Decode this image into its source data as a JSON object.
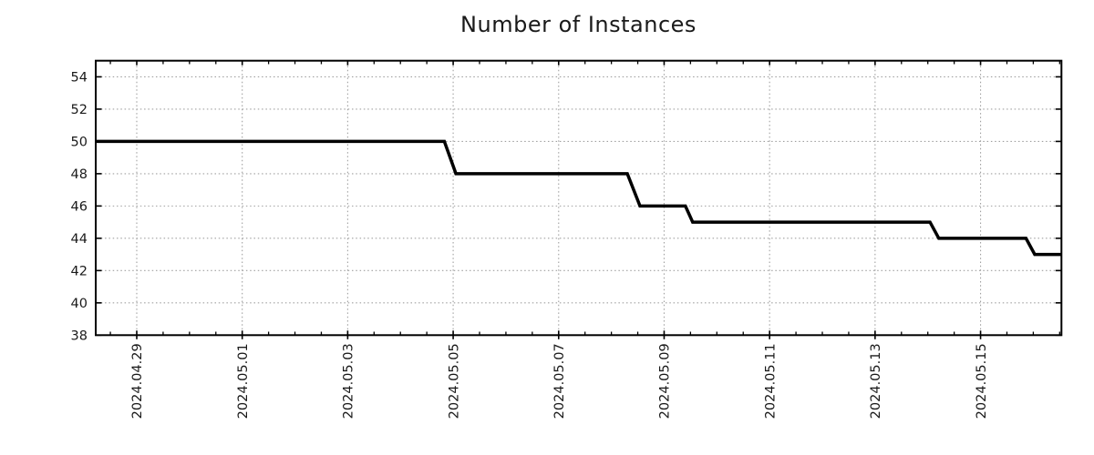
{
  "chart_data": {
    "type": "line",
    "title": "Number of Instances",
    "xlabel": "",
    "ylabel": "",
    "legend": "none",
    "grid": "dotted",
    "background": "#ffffff",
    "y_ticks": [
      38,
      40,
      42,
      44,
      46,
      48,
      50,
      52,
      54
    ],
    "ylim": [
      38,
      55
    ],
    "x_tick_labels": [
      "2024.04.29",
      "2024.05.01",
      "2024.05.03",
      "2024.05.05",
      "2024.05.07",
      "2024.05.09",
      "2024.05.11",
      "2024.05.13",
      "2024.05.15"
    ],
    "x_tick_dates": [
      "2024-04-29",
      "2024-05-01",
      "2024-05-03",
      "2024-05-05",
      "2024-05-07",
      "2024-05-09",
      "2024-05-11",
      "2024-05-13",
      "2024-05-15"
    ],
    "x_minor_tick_interval_hours": 12,
    "xlim": [
      "2024-04-28 05:20",
      "2024-05-16 12:49"
    ],
    "series": [
      {
        "name": "Number of Instances",
        "color": "#000000",
        "line_width": 3.5,
        "points": [
          [
            "2024-04-28 05:20",
            50
          ],
          [
            "2024-05-04 20:00",
            50
          ],
          [
            "2024-05-05 01:15",
            48
          ],
          [
            "2024-05-08 07:15",
            48
          ],
          [
            "2024-05-08 13:00",
            46
          ],
          [
            "2024-05-09 09:40",
            46
          ],
          [
            "2024-05-09 13:00",
            45
          ],
          [
            "2024-05-14 01:00",
            45
          ],
          [
            "2024-05-14 05:00",
            44
          ],
          [
            "2024-05-15 20:40",
            44
          ],
          [
            "2024-05-16 00:40",
            43
          ],
          [
            "2024-05-16 12:49",
            43
          ]
        ]
      }
    ],
    "colors": {
      "line": "#000000",
      "grid": "#a0a0a0",
      "axis": "#000000",
      "text": "#1a1a1a"
    }
  }
}
